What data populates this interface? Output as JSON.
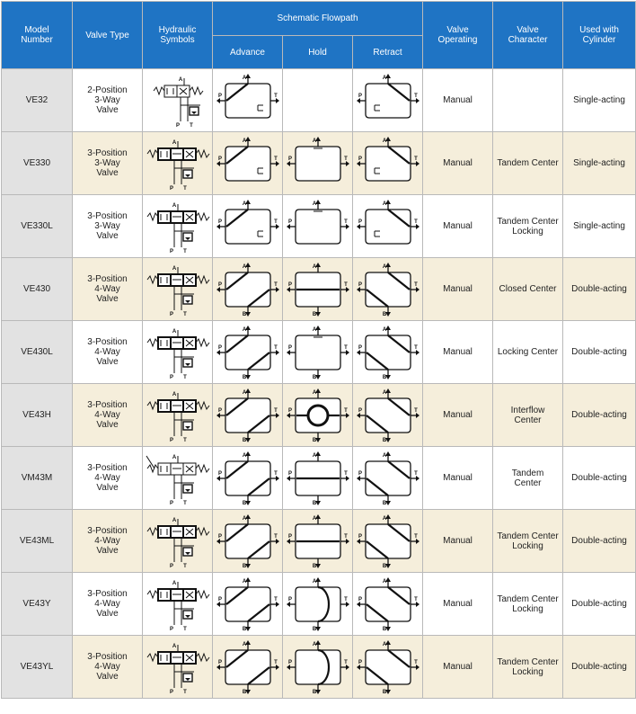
{
  "headers": {
    "model": "Model\nNumber",
    "valve_type": "Valve Type",
    "hydraulic_symbols": "Hydraulic\nSymbols",
    "schematic_flowpath": "Schematic Flowpath",
    "advance": "Advance",
    "hold": "Hold",
    "retract": "Retract",
    "valve_operating": "Valve\nOperating",
    "valve_character": "Valve\nCharacter",
    "used_with_cylinder": "Used with\nCylinder"
  },
  "port_labels": {
    "a": "A",
    "b": "B",
    "p": "P",
    "t": "T"
  },
  "rows": [
    {
      "model": "VE32",
      "type": "2-Position\n3-Way\nValve",
      "operating": "Manual",
      "character": "",
      "cylinder": "Single-acting",
      "ports": 3,
      "hold": "none",
      "hyd": "2pos"
    },
    {
      "model": "VE330",
      "type": "3-Position\n3-Way\nValve",
      "operating": "Manual",
      "character": "Tandem Center",
      "cylinder": "Single-acting",
      "ports": 3,
      "hold": "box",
      "hyd": "3pos"
    },
    {
      "model": "VE330L",
      "type": "3-Position\n3-Way\nValve",
      "operating": "Manual",
      "character": "Tandem Center\nLocking",
      "cylinder": "Single-acting",
      "ports": 3,
      "hold": "box",
      "hyd": "3pos"
    },
    {
      "model": "VE430",
      "type": "3-Position\n4-Way\nValve",
      "operating": "Manual",
      "character": "Closed Center",
      "cylinder": "Double-acting",
      "ports": 4,
      "hold": "straight",
      "hyd": "3pos"
    },
    {
      "model": "VE430L",
      "type": "3-Position\n4-Way\nValve",
      "operating": "Manual",
      "character": "Locking Center",
      "cylinder": "Double-acting",
      "ports": 4,
      "hold": "box",
      "hyd": "3pos"
    },
    {
      "model": "VE43H",
      "type": "3-Position\n4-Way\nValve",
      "operating": "Manual",
      "character": "Interflow\nCenter",
      "cylinder": "Double-acting",
      "ports": 4,
      "hold": "circle",
      "hyd": "3pos"
    },
    {
      "model": "VM43M",
      "type": "3-Position\n4-Way\nValve",
      "operating": "Manual",
      "character": "Tandem\nCenter",
      "cylinder": "Double-acting",
      "ports": 4,
      "hold": "straight",
      "hyd": "lever"
    },
    {
      "model": "VE43ML",
      "type": "3-Position\n4-Way\nValve",
      "operating": "Manual",
      "character": "Tandem Center\nLocking",
      "cylinder": "Double-acting",
      "ports": 4,
      "hold": "straight",
      "hyd": "3pos"
    },
    {
      "model": "VE43Y",
      "type": "3-Position\n4-Way\nValve",
      "operating": "Manual",
      "character": "Tandem Center\nLocking",
      "cylinder": "Double-acting",
      "ports": 4,
      "hold": "semicircle",
      "hyd": "3pos"
    },
    {
      "model": "VE43YL",
      "type": "3-Position\n4-Way\nValve",
      "operating": "Manual",
      "character": "Tandem Center\nLocking",
      "cylinder": "Double-acting",
      "ports": 4,
      "hold": "semicircle",
      "hyd": "3pos"
    }
  ],
  "row_shading": [
    "white",
    "beige",
    "white",
    "beige",
    "white",
    "beige",
    "white",
    "beige",
    "white",
    "beige"
  ]
}
